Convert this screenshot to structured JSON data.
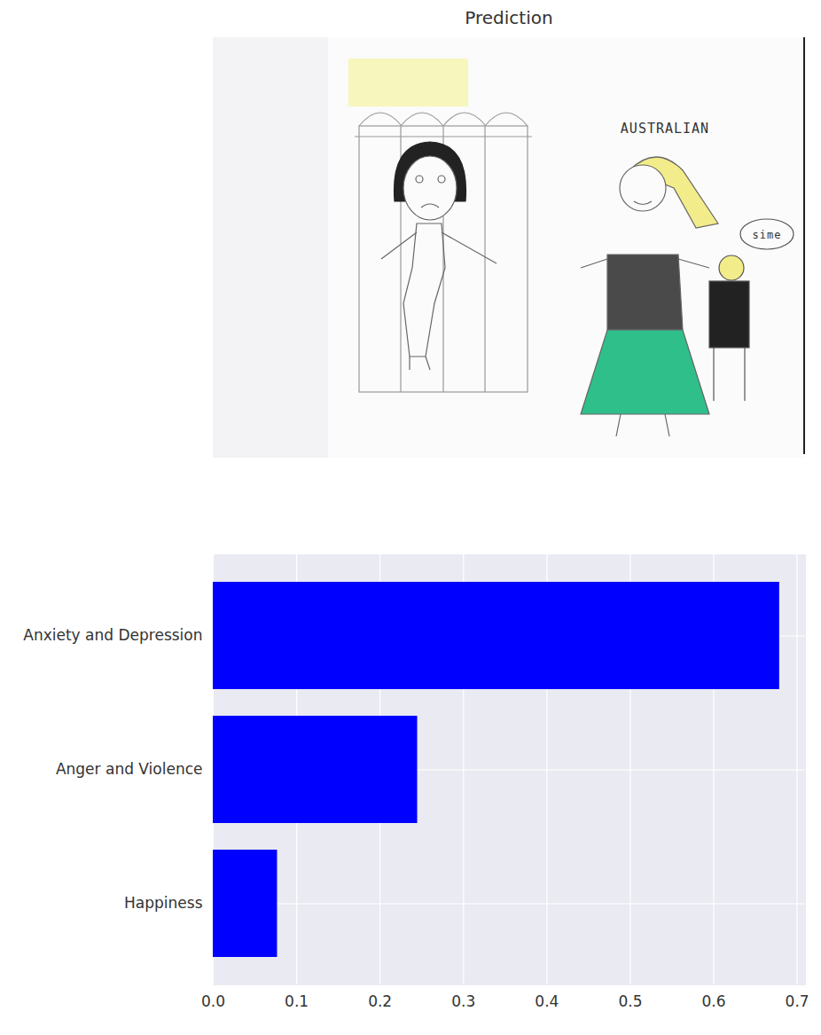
{
  "chart_data": {
    "type": "bar",
    "title": "Prediction",
    "orientation": "horizontal",
    "categories": [
      "Anxiety and Depression",
      "Anger and Violence",
      "Happiness"
    ],
    "values": [
      0.679,
      0.245,
      0.077
    ],
    "color": "#0000ff",
    "xlim": [
      0,
      0.71
    ],
    "xticks": [
      {
        "value": 0,
        "label": "0.0"
      },
      {
        "value": 0.1,
        "label": "0.1"
      },
      {
        "value": 0.2,
        "label": "0.2"
      },
      {
        "value": 0.3,
        "label": "0.3"
      },
      {
        "value": 0.4,
        "label": "0.4"
      },
      {
        "value": 0.5,
        "label": "0.5"
      },
      {
        "value": 0.6,
        "label": "0.6"
      },
      {
        "value": 0.7,
        "label": "0.7"
      }
    ],
    "grid": true,
    "annotations": [
      "AUSTRALIAN",
      "sime"
    ]
  }
}
